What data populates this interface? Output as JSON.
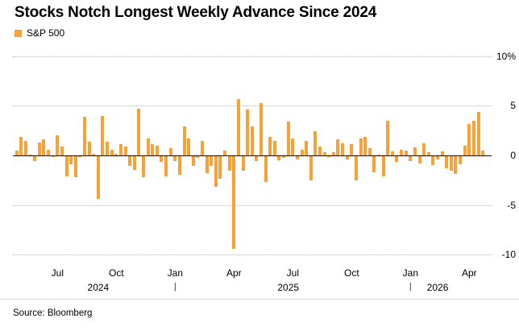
{
  "header": {
    "title": "Stocks Notch Longest Weekly Advance Since 2024",
    "legend": {
      "label": "S&P 500"
    }
  },
  "chart_data": {
    "type": "bar",
    "title": "Stocks Notch Longest Weekly Advance Since 2024",
    "series_name": "S&P 500 weekly percent change",
    "bar_color": "#F7A136",
    "ylim": [
      -10.8,
      10.8
    ],
    "grid": true,
    "yticks": [
      {
        "value": 10,
        "label": "10%"
      },
      {
        "value": 5,
        "label": "5"
      },
      {
        "value": 0,
        "label": "0"
      },
      {
        "value": -5,
        "label": "-5"
      },
      {
        "value": -10,
        "label": "-10"
      }
    ],
    "xticks": [
      {
        "index": 9,
        "label": "Jul"
      },
      {
        "index": 22,
        "label": "Oct"
      },
      {
        "index": 35,
        "label": "Jan"
      },
      {
        "index": 48,
        "label": "Apr"
      },
      {
        "index": 61,
        "label": "Jul"
      },
      {
        "index": 74,
        "label": "Oct"
      },
      {
        "index": 87,
        "label": "Jan"
      },
      {
        "index": 100,
        "label": "Apr"
      }
    ],
    "year_row": [
      {
        "type": "year",
        "index": 18,
        "label": "2024"
      },
      {
        "type": "sep",
        "index": 35,
        "label": "|"
      },
      {
        "type": "year",
        "index": 60,
        "label": "2025"
      },
      {
        "type": "sep",
        "index": 87,
        "label": "|"
      },
      {
        "type": "year",
        "index": 93,
        "label": "2026"
      }
    ],
    "values": [
      0.5,
      1.9,
      1.5,
      0.1,
      -0.5,
      1.3,
      1.6,
      0.6,
      -0.1,
      2.0,
      0.9,
      -2.0,
      -0.8,
      -2.1,
      -0.1,
      3.9,
      1.4,
      0.2,
      -4.3,
      4.0,
      1.4,
      0.6,
      0.2,
      1.1,
      0.9,
      -1.0,
      -1.4,
      4.7,
      -2.1,
      1.7,
      1.1,
      1.0,
      -0.6,
      -2.0,
      0.7,
      -0.5,
      -1.9,
      2.9,
      1.7,
      -1.0,
      -0.2,
      1.5,
      -1.7,
      -1.0,
      -3.1,
      -2.3,
      0.5,
      -1.5,
      -9.3,
      5.7,
      -1.5,
      4.6,
      2.9,
      -0.5,
      5.3,
      -2.6,
      1.9,
      1.5,
      -0.4,
      -0.2,
      3.4,
      1.7,
      -0.3,
      0.6,
      1.5,
      -2.4,
      2.4,
      0.9,
      0.3,
      -0.1,
      0.3,
      1.6,
      1.2,
      -0.3,
      1.1,
      -2.4,
      1.7,
      1.9,
      0.7,
      -1.6,
      0.1,
      -2.0,
      3.5,
      0.4,
      -0.6,
      0.6,
      0.5,
      -0.5,
      0.8,
      -0.7,
      1.2,
      0.3,
      -0.9,
      -0.3,
      0.4,
      -1.2,
      -1.5,
      -1.8,
      -0.8,
      1.0,
      3.2,
      3.5,
      4.4,
      0.5
    ]
  },
  "footer": {
    "source": "Source: Bloomberg"
  }
}
